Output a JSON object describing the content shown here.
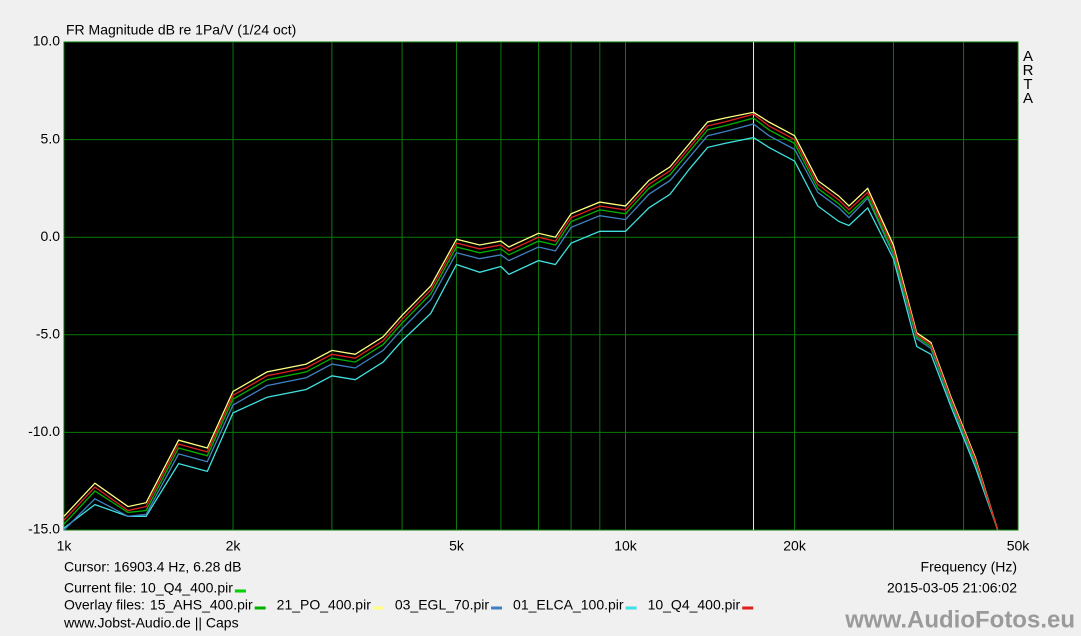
{
  "chart_data": {
    "type": "line",
    "title": "FR Magnitude dB re 1Pa/V (1/24 oct)",
    "side_label": "ARTA",
    "x_label": "Frequency (Hz)",
    "xscale": "log",
    "grid": true,
    "xlim": [
      1000,
      50000
    ],
    "ylim": [
      -15,
      10
    ],
    "xticks": [
      {
        "value": 1000,
        "label": "1k"
      },
      {
        "value": 2000,
        "label": "2k"
      },
      {
        "value": 5000,
        "label": "5k"
      },
      {
        "value": 10000,
        "label": "10k"
      },
      {
        "value": 20000,
        "label": "20k"
      },
      {
        "value": 50000,
        "label": "50k"
      }
    ],
    "xgrid": [
      3000,
      4000,
      6000,
      7000,
      8000,
      9000,
      30000,
      40000
    ],
    "yticks": [
      {
        "value": -15,
        "label": "-15.0"
      },
      {
        "value": -10,
        "label": "-10.0"
      },
      {
        "value": -5,
        "label": "-5.0"
      },
      {
        "value": 0,
        "label": "0.0"
      },
      {
        "value": 5,
        "label": "5.0"
      },
      {
        "value": 10,
        "label": "10.0"
      }
    ],
    "cursor": {
      "label": "Cursor: 16903.4 Hz, 6.28 dB",
      "x": 16903.4
    },
    "current_file": {
      "label": "Current file: 10_Q4_400.pir",
      "color": "#00d000"
    },
    "overlay_label": "Overlay files:",
    "timestamp": "2015-03-05  21:06:02",
    "footer": "www.Jobst-Audio.de  ||  Caps",
    "watermark": "www.AudioFotos.eu",
    "x": [
      1000,
      1135,
      1300,
      1400,
      1600,
      1800,
      2000,
      2300,
      2700,
      3000,
      3300,
      3700,
      4000,
      4500,
      5000,
      5500,
      6000,
      6200,
      7000,
      7500,
      8000,
      9000,
      10000,
      11000,
      12000,
      13000,
      14000,
      15000,
      16900,
      18000,
      20000,
      22000,
      24000,
      25000,
      27000,
      30000,
      33000,
      35000,
      38000,
      42000,
      46000
    ],
    "series": [
      {
        "name": "15_AHS_400.pir",
        "color": "#00b000",
        "values": [
          -14.7,
          -13.0,
          -14.1,
          -14.0,
          -10.8,
          -11.2,
          -8.3,
          -7.3,
          -6.9,
          -6.2,
          -6.4,
          -5.5,
          -4.4,
          -2.9,
          -0.5,
          -0.8,
          -0.6,
          -0.9,
          -0.2,
          -0.4,
          0.8,
          1.4,
          1.2,
          2.5,
          3.2,
          4.4,
          5.5,
          5.7,
          6.1,
          5.5,
          4.8,
          2.5,
          1.7,
          1.2,
          2.1,
          -0.8,
          -5.1,
          -5.6,
          -8.4,
          -11.5,
          -15.0
        ]
      },
      {
        "name": "21_PO_400.pir",
        "color": "#ffff80",
        "values": [
          -14.3,
          -12.6,
          -13.8,
          -13.6,
          -10.4,
          -10.8,
          -7.9,
          -6.9,
          -6.5,
          -5.8,
          -6.0,
          -5.1,
          -4.0,
          -2.5,
          -0.1,
          -0.4,
          -0.2,
          -0.5,
          0.2,
          0.0,
          1.2,
          1.8,
          1.6,
          2.9,
          3.6,
          4.8,
          5.9,
          6.1,
          6.4,
          5.9,
          5.2,
          2.9,
          2.1,
          1.6,
          2.5,
          -0.4,
          -4.9,
          -5.4,
          -8.2,
          -11.3,
          -15.0
        ]
      },
      {
        "name": "03_EGL_70.pir",
        "color": "#4080c0",
        "values": [
          -15.0,
          -13.4,
          -14.3,
          -14.2,
          -11.1,
          -11.5,
          -8.6,
          -7.6,
          -7.2,
          -6.5,
          -6.7,
          -5.8,
          -4.7,
          -3.2,
          -0.8,
          -1.1,
          -0.9,
          -1.2,
          -0.5,
          -0.7,
          0.5,
          1.1,
          0.9,
          2.2,
          2.9,
          4.1,
          5.2,
          5.4,
          5.8,
          5.2,
          4.5,
          2.3,
          1.5,
          1.0,
          2.0,
          -0.9,
          -5.2,
          -5.7,
          -8.5,
          -11.6,
          -15.0
        ]
      },
      {
        "name": "01_ELCA_100.pir",
        "color": "#40e0e0",
        "values": [
          -14.9,
          -13.7,
          -14.3,
          -14.3,
          -11.6,
          -12.0,
          -9.0,
          -8.2,
          -7.8,
          -7.1,
          -7.3,
          -6.4,
          -5.3,
          -3.9,
          -1.4,
          -1.8,
          -1.5,
          -1.9,
          -1.2,
          -1.4,
          -0.3,
          0.3,
          0.3,
          1.5,
          2.2,
          3.5,
          4.6,
          4.8,
          5.1,
          4.6,
          3.9,
          1.6,
          0.8,
          0.6,
          1.5,
          -1.1,
          -5.6,
          -6.0,
          -8.7,
          -11.8,
          -15.0
        ]
      },
      {
        "name": "10_Q4_400.pir",
        "color": "#e02020",
        "values": [
          -14.5,
          -12.8,
          -14.0,
          -13.8,
          -10.6,
          -11.0,
          -8.1,
          -7.1,
          -6.7,
          -6.0,
          -6.2,
          -5.3,
          -4.2,
          -2.7,
          -0.3,
          -0.6,
          -0.4,
          -0.7,
          0.0,
          -0.2,
          1.0,
          1.6,
          1.4,
          2.7,
          3.4,
          4.6,
          5.7,
          5.9,
          6.3,
          5.7,
          5.0,
          2.7,
          1.9,
          1.4,
          2.3,
          -0.6,
          -5.0,
          -5.5,
          -8.3,
          -11.4,
          -15.0
        ]
      }
    ]
  }
}
